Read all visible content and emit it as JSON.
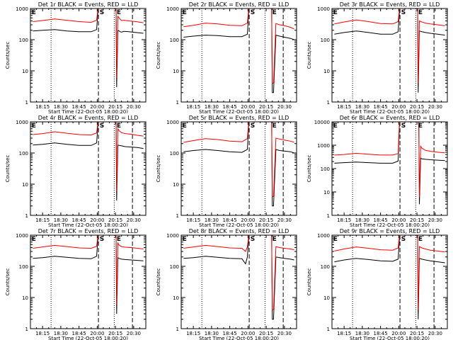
{
  "common": {
    "ylabel": "Counts/sec",
    "xlabel": "Start Time (22-Oct-05 18:00:20)",
    "x_tick_labels": [
      "18:15",
      "18:30",
      "18:45",
      "20:00",
      "20:15",
      "20:30"
    ],
    "x_tick_values": [
      15,
      30,
      45,
      60,
      75,
      90
    ],
    "xlim": [
      5,
      100
    ],
    "marker_labels": {
      "eclipse": "E",
      "saa": "S"
    },
    "colors": {
      "events": "#000000",
      "lld": "#ff0000",
      "axes": "#000000"
    },
    "yscale": "log"
  },
  "chart_data": [
    {
      "type": "line",
      "title": "Det 1r BLACK = Events, RED = LLD",
      "ylim": [
        1,
        1000
      ],
      "y_tick_labels": [
        "1",
        "10",
        "100",
        "1000"
      ],
      "xlim": [
        5,
        100
      ],
      "markers": {
        "dotted": [
          22,
          74
        ],
        "dashed": [
          61,
          89
        ],
        "E_left": 6,
        "S": 62,
        "E_right": 76
      },
      "series": [
        {
          "name": "BLACK",
          "x": [
            7,
            15,
            25,
            35,
            45,
            55,
            59.5,
            60.5,
            61,
            75.5,
            76,
            77,
            78,
            79,
            80,
            82,
            86,
            92,
            98
          ],
          "y": [
            190,
            200,
            210,
            190,
            180,
            180,
            210,
            700,
            1000,
            1000,
            3,
            200,
            190,
            180,
            175,
            185,
            180,
            170,
            160
          ]
        },
        {
          "name": "RED",
          "x": [
            7,
            15,
            25,
            35,
            45,
            55,
            59.5,
            60.5,
            61,
            75.5,
            76,
            77,
            78,
            79,
            80,
            82,
            86,
            92,
            98
          ],
          "y": [
            380,
            410,
            460,
            420,
            380,
            360,
            420,
            900,
            1000,
            1000,
            6,
            560,
            500,
            450,
            410,
            420,
            400,
            380,
            350
          ]
        }
      ]
    },
    {
      "type": "line",
      "title": "Det 2r BLACK = Events, RED = LLD",
      "ylim": [
        1,
        1000
      ],
      "y_tick_labels": [
        "1",
        "10",
        "100",
        "1000"
      ],
      "xlim": [
        5,
        100
      ],
      "markers": {
        "dotted": [
          22,
          74
        ],
        "dashed": [
          61,
          89
        ],
        "E_left": 6,
        "S": 62,
        "E_right": 80
      },
      "series": [
        {
          "name": "BLACK",
          "x": [
            7,
            15,
            25,
            35,
            45,
            55,
            59.5,
            60.5,
            61,
            79.5,
            80,
            81,
            83,
            86,
            90,
            95,
            98
          ],
          "y": [
            120,
            130,
            140,
            135,
            125,
            125,
            150,
            700,
            1000,
            1000,
            2,
            2,
            140,
            130,
            120,
            110,
            100
          ]
        },
        {
          "name": "RED",
          "x": [
            7,
            15,
            25,
            35,
            45,
            55,
            59.5,
            60.5,
            61,
            79.5,
            80,
            81,
            83,
            86,
            90,
            95,
            98
          ],
          "y": [
            260,
            290,
            340,
            320,
            290,
            280,
            340,
            900,
            1000,
            1000,
            4,
            4,
            330,
            300,
            280,
            250,
            220
          ]
        }
      ]
    },
    {
      "type": "line",
      "title": "Det 3r BLACK = Events, RED = LLD",
      "ylim": [
        1,
        1000
      ],
      "y_tick_labels": [
        "1",
        "10",
        "100",
        "1000"
      ],
      "xlim": [
        5,
        100
      ],
      "markers": {
        "dotted": [
          22,
          74
        ],
        "dashed": [
          61,
          89
        ],
        "E_left": 6,
        "S": 62,
        "E_right": 76
      },
      "series": [
        {
          "name": "BLACK",
          "x": [
            7,
            15,
            25,
            35,
            45,
            55,
            59.5,
            60.5,
            61,
            75.5,
            76,
            77,
            79,
            82,
            86,
            92,
            98
          ],
          "y": [
            150,
            170,
            190,
            170,
            150,
            150,
            180,
            700,
            1000,
            1000,
            2,
            190,
            180,
            170,
            160,
            150,
            140
          ]
        },
        {
          "name": "RED",
          "x": [
            7,
            15,
            25,
            35,
            45,
            55,
            59.5,
            60.5,
            61,
            75.5,
            76,
            77,
            79,
            82,
            86,
            92,
            98
          ],
          "y": [
            320,
            370,
            430,
            380,
            330,
            320,
            380,
            900,
            1000,
            1000,
            4,
            400,
            370,
            340,
            320,
            300,
            280
          ]
        }
      ]
    },
    {
      "type": "line",
      "title": "Det 4r BLACK = Events, RED = LLD",
      "ylim": [
        1,
        1000
      ],
      "y_tick_labels": [
        "1",
        "10",
        "100",
        "1000"
      ],
      "xlim": [
        5,
        100
      ],
      "markers": {
        "dotted": [
          22,
          74
        ],
        "dashed": [
          61,
          89
        ],
        "E_left": 6,
        "S": 62,
        "E_right": 76
      },
      "series": [
        {
          "name": "BLACK",
          "x": [
            7,
            15,
            25,
            35,
            45,
            55,
            59.5,
            60.5,
            61,
            75.5,
            76,
            77,
            78,
            80,
            83,
            88,
            93,
            98
          ],
          "y": [
            180,
            190,
            210,
            190,
            175,
            175,
            210,
            700,
            1000,
            1000,
            3,
            180,
            175,
            170,
            160,
            155,
            150,
            140
          ]
        },
        {
          "name": "RED",
          "x": [
            7,
            15,
            25,
            35,
            45,
            55,
            59.5,
            60.5,
            61,
            75.5,
            76,
            77,
            78,
            80,
            83,
            88,
            93,
            98
          ],
          "y": [
            390,
            420,
            480,
            430,
            390,
            380,
            440,
            900,
            1000,
            1000,
            6,
            600,
            520,
            450,
            420,
            400,
            370,
            350
          ]
        }
      ]
    },
    {
      "type": "line",
      "title": "Det 5r BLACK = Events, RED = LLD",
      "ylim": [
        1,
        1000
      ],
      "y_tick_labels": [
        "1",
        "10",
        "100",
        "1000"
      ],
      "xlim": [
        5,
        100
      ],
      "markers": {
        "dotted": [
          22,
          74
        ],
        "dashed": [
          61,
          89
        ],
        "E_left": 6,
        "S": 62,
        "E_right": 80
      },
      "series": [
        {
          "name": "BLACK",
          "x": [
            7,
            15,
            25,
            35,
            45,
            55,
            59.5,
            60.5,
            61,
            79.5,
            80,
            81,
            83,
            86,
            90,
            95,
            98
          ],
          "y": [
            110,
            120,
            130,
            120,
            110,
            105,
            130,
            700,
            1000,
            1000,
            2,
            2,
            130,
            120,
            115,
            110,
            100
          ]
        },
        {
          "name": "RED",
          "x": [
            7,
            15,
            25,
            35,
            45,
            55,
            59.5,
            60.5,
            61,
            79.5,
            80,
            81,
            83,
            86,
            90,
            95,
            98
          ],
          "y": [
            220,
            250,
            290,
            270,
            240,
            230,
            290,
            900,
            1000,
            1000,
            4,
            4,
            300,
            280,
            260,
            240,
            220
          ]
        }
      ]
    },
    {
      "type": "line",
      "title": "Det 6r BLACK = Events, RED = LLD",
      "ylim": [
        1,
        10000
      ],
      "y_tick_labels": [
        "1",
        "10",
        "100",
        "1000",
        "10000"
      ],
      "xlim": [
        5,
        100
      ],
      "markers": {
        "dotted": [
          22,
          74
        ],
        "dashed": [
          61,
          89
        ],
        "E_left": 6,
        "S": 62,
        "E_right": 76
      },
      "series": [
        {
          "name": "BLACK",
          "x": [
            7,
            15,
            25,
            35,
            45,
            55,
            59.5,
            60.5,
            61,
            76.5,
            77,
            78,
            79,
            82,
            86,
            92,
            98
          ],
          "y": [
            170,
            180,
            190,
            180,
            170,
            170,
            210,
            6000,
            10000,
            10000,
            3,
            280,
            260,
            250,
            240,
            230,
            220
          ]
        },
        {
          "name": "RED",
          "x": [
            7,
            15,
            25,
            35,
            45,
            55,
            59.5,
            60.5,
            61,
            76.5,
            77,
            78,
            79,
            82,
            86,
            92,
            98
          ],
          "y": [
            380,
            400,
            450,
            410,
            380,
            380,
            440,
            8000,
            10000,
            10000,
            6,
            900,
            750,
            600,
            550,
            500,
            470
          ]
        }
      ]
    },
    {
      "type": "line",
      "title": "Det 7r BLACK = Events, RED = LLD",
      "ylim": [
        1,
        1000
      ],
      "y_tick_labels": [
        "1",
        "10",
        "100",
        "1000"
      ],
      "xlim": [
        5,
        100
      ],
      "markers": {
        "dotted": [
          22,
          74
        ],
        "dashed": [
          61,
          89
        ],
        "E_left": 6,
        "S": 62,
        "E_right": 76
      },
      "series": [
        {
          "name": "BLACK",
          "x": [
            7,
            15,
            25,
            35,
            45,
            55,
            59.5,
            60.5,
            61,
            75.5,
            76,
            77,
            78,
            80,
            83,
            88,
            93,
            98
          ],
          "y": [
            180,
            190,
            210,
            195,
            180,
            175,
            210,
            700,
            1000,
            1000,
            3,
            190,
            180,
            170,
            165,
            160,
            155,
            150
          ]
        },
        {
          "name": "RED",
          "x": [
            7,
            15,
            25,
            35,
            45,
            55,
            59.5,
            60.5,
            61,
            75.5,
            76,
            77,
            78,
            80,
            83,
            88,
            93,
            98
          ],
          "y": [
            380,
            420,
            470,
            430,
            390,
            380,
            440,
            900,
            1000,
            1000,
            6,
            560,
            480,
            430,
            410,
            400,
            380,
            360
          ]
        }
      ]
    },
    {
      "type": "line",
      "title": "Det 8r BLACK = Events, RED = LLD",
      "ylim": [
        1,
        1000
      ],
      "y_tick_labels": [
        "1",
        "10",
        "100",
        "1000"
      ],
      "xlim": [
        5,
        100
      ],
      "markers": {
        "dotted": [
          22,
          74
        ],
        "dashed": [
          61,
          89
        ],
        "E_left": 6,
        "S": 62,
        "E_right": 80
      },
      "series": [
        {
          "name": "BLACK",
          "x": [
            7,
            15,
            25,
            35,
            45,
            55,
            58,
            59.5,
            60.5,
            61,
            79.5,
            80,
            81,
            83,
            86,
            90,
            95,
            98
          ],
          "y": [
            180,
            190,
            210,
            195,
            180,
            175,
            120,
            200,
            700,
            1000,
            1000,
            2,
            2,
            200,
            190,
            180,
            170,
            160
          ]
        },
        {
          "name": "RED",
          "x": [
            7,
            15,
            25,
            35,
            45,
            55,
            58,
            59.5,
            60.5,
            61,
            79.5,
            80,
            81,
            83,
            86,
            90,
            95,
            98
          ],
          "y": [
            380,
            420,
            470,
            430,
            390,
            380,
            300,
            420,
            900,
            1000,
            1000,
            4,
            4,
            430,
            400,
            380,
            360,
            340
          ]
        }
      ]
    },
    {
      "type": "line",
      "title": "Det 9r BLACK = Events, RED = LLD",
      "ylim": [
        1,
        1000
      ],
      "y_tick_labels": [
        "1",
        "10",
        "100",
        "1000"
      ],
      "xlim": [
        5,
        100
      ],
      "markers": {
        "dotted": [
          22,
          74
        ],
        "dashed": [
          61,
          89
        ],
        "E_left": 6,
        "S": 62,
        "E_right": 76
      },
      "series": [
        {
          "name": "BLACK",
          "x": [
            7,
            15,
            25,
            35,
            45,
            55,
            59.5,
            60.5,
            61,
            75.5,
            76,
            77,
            79,
            82,
            86,
            92,
            98
          ],
          "y": [
            140,
            160,
            180,
            165,
            150,
            145,
            170,
            700,
            1000,
            1000,
            2,
            180,
            170,
            160,
            150,
            140,
            130
          ]
        },
        {
          "name": "RED",
          "x": [
            7,
            15,
            25,
            35,
            45,
            55,
            59.5,
            60.5,
            61,
            75.5,
            76,
            77,
            79,
            82,
            86,
            92,
            98
          ],
          "y": [
            310,
            360,
            420,
            380,
            340,
            330,
            390,
            900,
            1000,
            1000,
            4,
            430,
            390,
            360,
            330,
            310,
            290
          ]
        }
      ]
    }
  ]
}
